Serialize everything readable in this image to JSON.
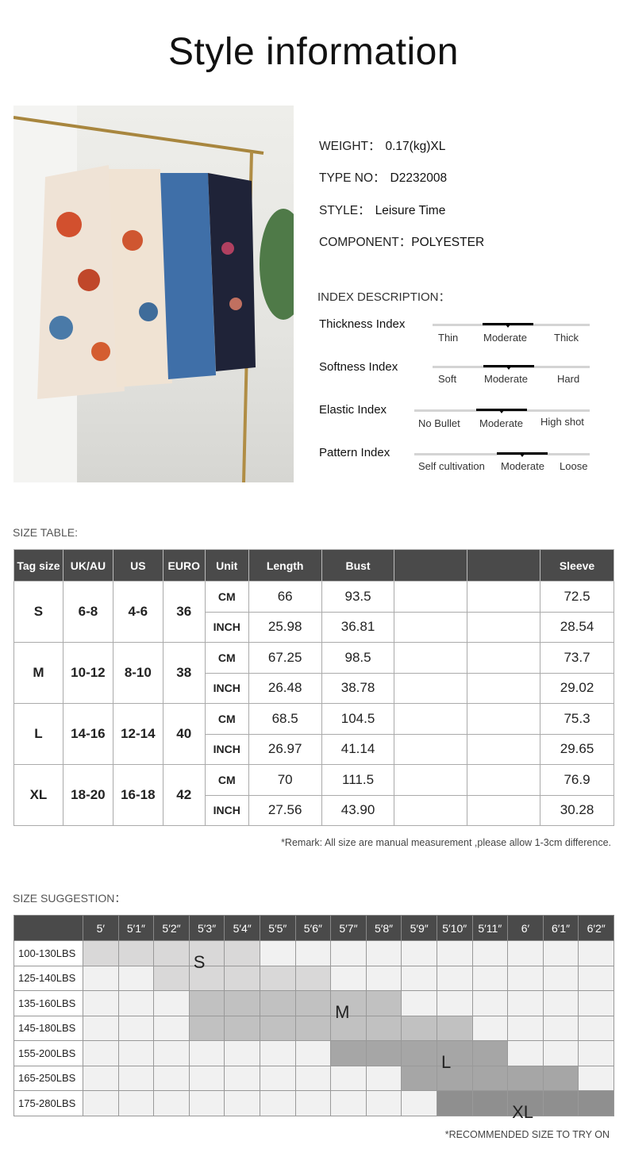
{
  "title": "Style information",
  "info": [
    {
      "label": "WEIGHT：",
      "value": "0.17(kg)XL"
    },
    {
      "label": "TYPE NO：",
      "value": "D2232008"
    },
    {
      "label": "STYLE：",
      "value": "Leisure Time"
    },
    {
      "label": "COMPONENT：",
      "value": "POLYESTER"
    }
  ],
  "index_heading": "INDEX DESCRIPTION：",
  "indices": [
    {
      "label": "Thickness Index",
      "options": [
        "Thin",
        "Moderate",
        "Thick"
      ],
      "selected": "Moderate"
    },
    {
      "label": "Softness Index",
      "options": [
        "Soft",
        "Moderate",
        "Hard"
      ],
      "selected": "Moderate"
    },
    {
      "label": "Elastic Index",
      "options": [
        "No Bullet",
        "Moderate",
        "High shot"
      ],
      "selected": "Moderate"
    },
    {
      "label": "Pattern Index",
      "options": [
        "Self cultivation",
        "Moderate",
        "Loose"
      ],
      "selected": "Moderate"
    }
  ],
  "size_table": {
    "heading": "SIZE TABLE:",
    "headers": [
      "Tag size",
      "UK/AU",
      "US",
      "EURO",
      "Unit",
      "Length",
      "Bust",
      "",
      "",
      "Sleeve"
    ],
    "rows": [
      {
        "tag": "S",
        "ukau": "6-8",
        "us": "4-6",
        "euro": "36",
        "cm": [
          "66",
          "93.5",
          "72.5"
        ],
        "inch": [
          "25.98",
          "36.81",
          "28.54"
        ]
      },
      {
        "tag": "M",
        "ukau": "10-12",
        "us": "8-10",
        "euro": "38",
        "cm": [
          "67.25",
          "98.5",
          "73.7"
        ],
        "inch": [
          "26.48",
          "38.78",
          "29.02"
        ]
      },
      {
        "tag": "L",
        "ukau": "14-16",
        "us": "12-14",
        "euro": "40",
        "cm": [
          "68.5",
          "104.5",
          "75.3"
        ],
        "inch": [
          "26.97",
          "41.14",
          "29.65"
        ]
      },
      {
        "tag": "XL",
        "ukau": "18-20",
        "us": "16-18",
        "euro": "42",
        "cm": [
          "70",
          "111.5",
          "76.9"
        ],
        "inch": [
          "27.56",
          "43.90",
          "30.28"
        ]
      }
    ],
    "units": [
      "CM",
      "INCH"
    ],
    "remark": "*Remark: All size are manual measurement ,please allow 1-3cm difference."
  },
  "size_suggestion": {
    "heading": "SIZE SUGGESTION：",
    "heights": [
      "5′",
      "5′1″",
      "5′2″",
      "5′3″",
      "5′4″",
      "5′5″",
      "5′6″",
      "5′7″",
      "5′8″",
      "5′9″",
      "5′10″",
      "5′11″",
      "6′",
      "6′1″",
      "6′2″"
    ],
    "weights": [
      "100-130LBS",
      "125-140LBS",
      "135-160LBS",
      "145-180LBS",
      "155-200LBS",
      "165-250LBS",
      "175-280LBS"
    ],
    "ranges": [
      {
        "size": "S",
        "rows": [
          [
            0,
            4
          ],
          [
            2,
            6
          ]
        ],
        "color": "#d9d8d8"
      },
      {
        "size": "M",
        "rows": [
          [
            3,
            8
          ],
          [
            3,
            10
          ]
        ],
        "color": "#c1c1c1"
      },
      {
        "size": "L",
        "rows": [
          [
            7,
            11
          ],
          [
            9,
            13
          ]
        ],
        "color": "#a6a6a6"
      },
      {
        "size": "XL",
        "rows": [
          [
            10,
            14
          ]
        ],
        "color": "#8f8f8f"
      }
    ],
    "note": "*RECOMMENDED SIZE TO TRY ON"
  }
}
